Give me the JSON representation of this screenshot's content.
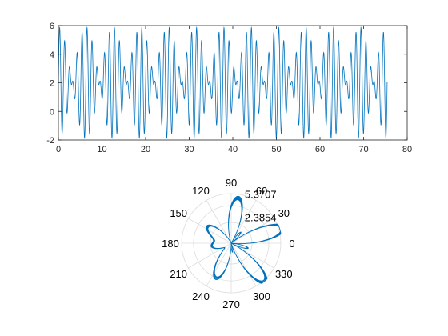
{
  "chart_data": [
    {
      "type": "line",
      "title": "",
      "xlabel": "",
      "ylabel": "",
      "xlim": [
        0,
        80
      ],
      "ylim": [
        -2,
        6
      ],
      "x_ticks": [
        0,
        10,
        20,
        30,
        40,
        50,
        60,
        70,
        80
      ],
      "y_ticks": [
        -2,
        0,
        2,
        4,
        6
      ],
      "x_tick_labels": [
        "0",
        "10",
        "20",
        "30",
        "40",
        "50",
        "60",
        "70",
        "80"
      ],
      "y_tick_labels": [
        "-2",
        "0",
        "2",
        "4",
        "6"
      ],
      "grid": false,
      "series": [
        {
          "color": "#0072BD",
          "x_range": [
            0,
            75.4
          ],
          "y_min": -1.5,
          "y_max": 5.45,
          "components": [
            {
              "amplitude": 2.0,
              "angular_frequency": 5
            },
            {
              "amplitude": 1.9,
              "angular_frequency": 6
            }
          ],
          "offset": 2.0
        }
      ]
    },
    {
      "type": "polar",
      "title": "",
      "theta_ticks": [
        0,
        30,
        60,
        90,
        120,
        150,
        180,
        210,
        240,
        270,
        300,
        330
      ],
      "theta_tick_labels": [
        "0",
        "30",
        "60",
        "90",
        "120",
        "150",
        "180",
        "210",
        "240",
        "270",
        "300",
        "330"
      ],
      "r_tick_labels": [
        "2.3854",
        "5.3707"
      ],
      "r_max": 5.3707,
      "grid": true,
      "series": [
        {
          "color": "#0072BD",
          "description": "rose curve from the same signal used as radius over the time axis"
        }
      ]
    }
  ]
}
